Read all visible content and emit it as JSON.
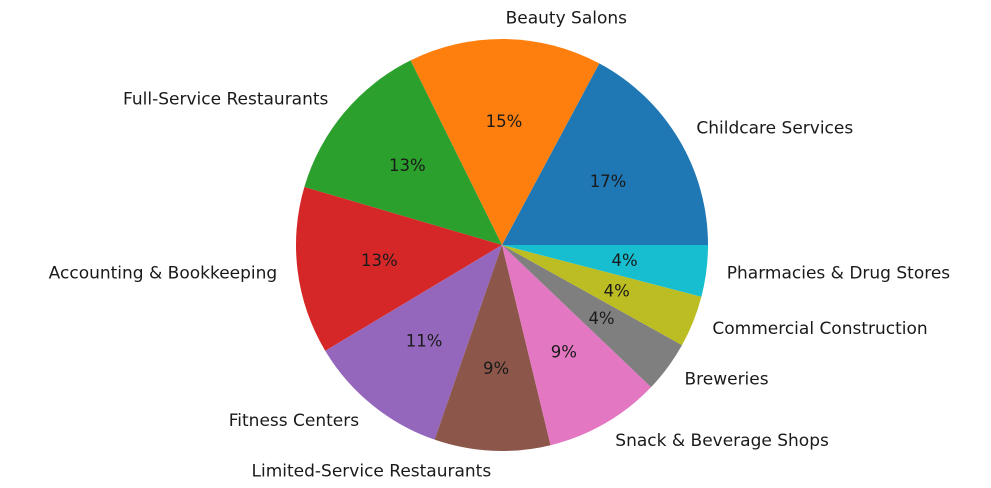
{
  "chart_data": {
    "type": "pie",
    "start_angle_deg": 0,
    "direction": "counterclockwise",
    "slices": [
      {
        "label": "Childcare Services",
        "value": 17,
        "pct_label": "17%",
        "color": "#1f77b4"
      },
      {
        "label": "Beauty Salons",
        "value": 15,
        "pct_label": "15%",
        "color": "#ff7f0e"
      },
      {
        "label": "Full-Service Restaurants",
        "value": 13,
        "pct_label": "13%",
        "color": "#2ca02c"
      },
      {
        "label": "Accounting & Bookkeeping",
        "value": 13,
        "pct_label": "13%",
        "color": "#d62728"
      },
      {
        "label": "Fitness Centers",
        "value": 11,
        "pct_label": "11%",
        "color": "#9467bd"
      },
      {
        "label": "Limited-Service Restaurants",
        "value": 9,
        "pct_label": "9%",
        "color": "#8c564b"
      },
      {
        "label": "Snack & Beverage Shops",
        "value": 9,
        "pct_label": "9%",
        "color": "#e377c2"
      },
      {
        "label": "Breweries",
        "value": 4,
        "pct_label": "4%",
        "color": "#7f7f7f"
      },
      {
        "label": "Commercial Construction",
        "value": 4,
        "pct_label": "4%",
        "color": "#bcbd22"
      },
      {
        "label": "Pharmacies & Drug Stores",
        "value": 4,
        "pct_label": "4%",
        "color": "#17becf"
      }
    ]
  }
}
